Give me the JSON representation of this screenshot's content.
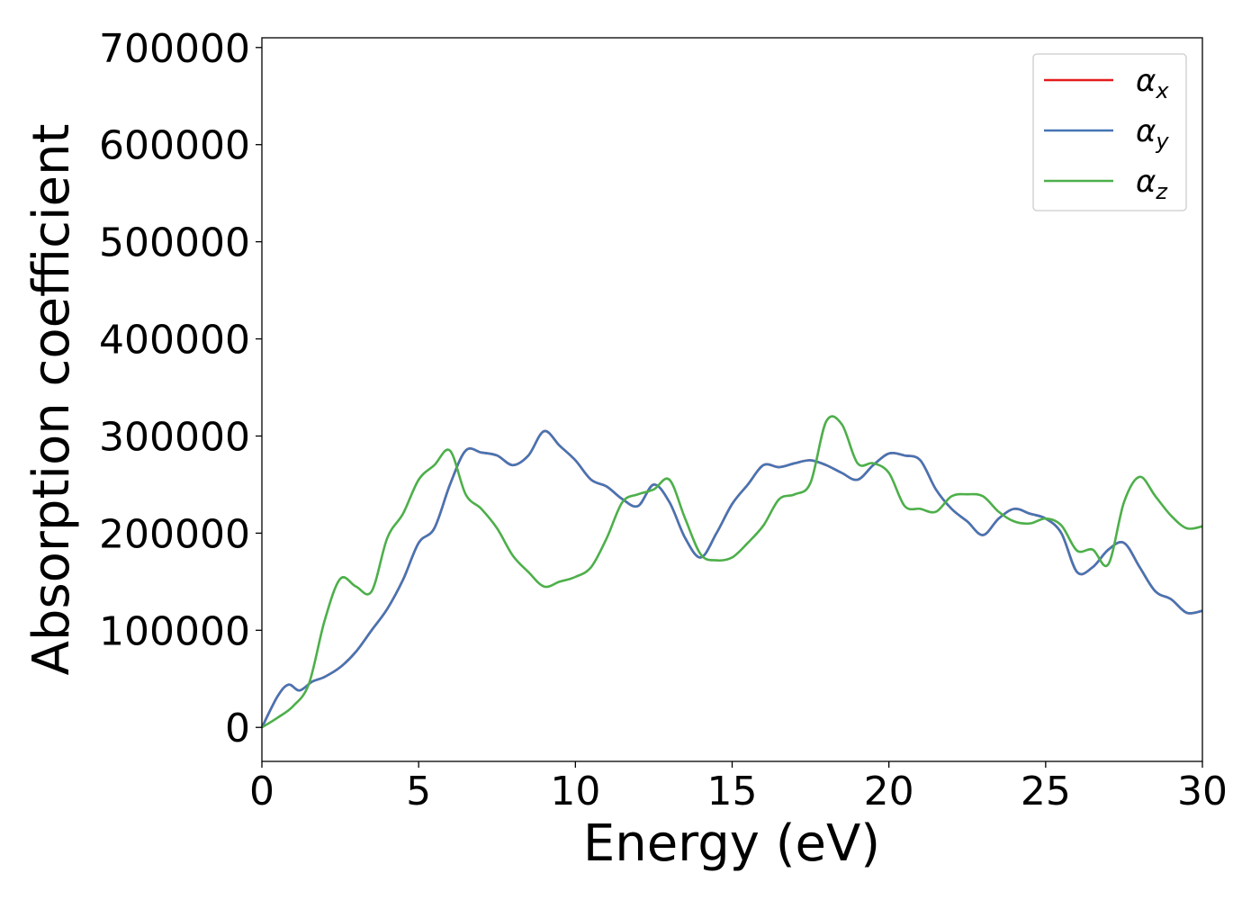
{
  "chart_data": {
    "type": "line",
    "xlabel": "Energy (eV)",
    "ylabel": "Absorption coefficient",
    "xlim": [
      0,
      30
    ],
    "ylim": [
      -35000,
      710000
    ],
    "xticks": [
      0,
      5,
      10,
      15,
      20,
      25,
      30
    ],
    "xtick_labels": [
      "0",
      "5",
      "10",
      "15",
      "20",
      "25",
      "30"
    ],
    "yticks": [
      0,
      100000,
      200000,
      300000,
      400000,
      500000,
      600000,
      700000
    ],
    "ytick_labels": [
      "0",
      "100000",
      "200000",
      "300000",
      "400000",
      "500000",
      "600000",
      "700000"
    ],
    "grid": false,
    "legend_position": "top-right",
    "series": [
      {
        "name": "α_x",
        "label_base": "α",
        "label_sub": "x",
        "color": "#e41a1c",
        "x": [
          0,
          0.5,
          0.85,
          1.2,
          1.6,
          2,
          2.5,
          3,
          3.5,
          4,
          4.5,
          5,
          5.5,
          6,
          6.5,
          7,
          7.5,
          8,
          8.5,
          9,
          9.5,
          10,
          10.5,
          11,
          11.5,
          12,
          12.5,
          13,
          13.5,
          14,
          14.5,
          15,
          15.5,
          16,
          16.5,
          17,
          17.5,
          18,
          18.5,
          19,
          19.5,
          20,
          20.5,
          21,
          21.5,
          22,
          22.5,
          23,
          23.5,
          24,
          24.5,
          25,
          25.5,
          26,
          26.5,
          27,
          27.5,
          28,
          28.5,
          29,
          29.5,
          30
        ],
        "y": [
          0,
          32000,
          44000,
          38000,
          47000,
          52000,
          62000,
          78000,
          100000,
          122000,
          152000,
          190000,
          205000,
          250000,
          285000,
          283000,
          280000,
          270000,
          280000,
          305000,
          290000,
          275000,
          255000,
          248000,
          235000,
          228000,
          250000,
          232000,
          195000,
          175000,
          200000,
          230000,
          250000,
          270000,
          268000,
          272000,
          275000,
          270000,
          262000,
          255000,
          270000,
          282000,
          280000,
          275000,
          245000,
          225000,
          212000,
          198000,
          215000,
          225000,
          220000,
          215000,
          200000,
          160000,
          165000,
          183000,
          190000,
          165000,
          140000,
          132000,
          118000,
          120000
        ]
      },
      {
        "name": "α_y",
        "label_base": "α",
        "label_sub": "y",
        "color": "#4575b4",
        "x": [
          0,
          0.5,
          0.85,
          1.2,
          1.6,
          2,
          2.5,
          3,
          3.5,
          4,
          4.5,
          5,
          5.5,
          6,
          6.5,
          7,
          7.5,
          8,
          8.5,
          9,
          9.5,
          10,
          10.5,
          11,
          11.5,
          12,
          12.5,
          13,
          13.5,
          14,
          14.5,
          15,
          15.5,
          16,
          16.5,
          17,
          17.5,
          18,
          18.5,
          19,
          19.5,
          20,
          20.5,
          21,
          21.5,
          22,
          22.5,
          23,
          23.5,
          24,
          24.5,
          25,
          25.5,
          26,
          26.5,
          27,
          27.5,
          28,
          28.5,
          29,
          29.5,
          30
        ],
        "y": [
          0,
          32000,
          44000,
          38000,
          47000,
          52000,
          62000,
          78000,
          100000,
          122000,
          152000,
          190000,
          205000,
          250000,
          285000,
          283000,
          280000,
          270000,
          280000,
          305000,
          290000,
          275000,
          255000,
          248000,
          235000,
          228000,
          250000,
          232000,
          195000,
          175000,
          200000,
          230000,
          250000,
          270000,
          268000,
          272000,
          275000,
          270000,
          262000,
          255000,
          270000,
          282000,
          280000,
          275000,
          245000,
          225000,
          212000,
          198000,
          215000,
          225000,
          220000,
          215000,
          200000,
          160000,
          165000,
          183000,
          190000,
          165000,
          140000,
          132000,
          118000,
          120000
        ]
      },
      {
        "name": "α_z",
        "label_base": "α",
        "label_sub": "z",
        "color": "#4daf4a",
        "x": [
          0,
          0.5,
          1,
          1.5,
          2,
          2.5,
          3,
          3.5,
          4,
          4.5,
          5,
          5.5,
          6,
          6.5,
          7,
          7.5,
          8,
          8.5,
          9,
          9.5,
          10,
          10.5,
          11,
          11.5,
          12,
          12.5,
          13,
          13.5,
          14,
          14.5,
          15,
          15.5,
          16,
          16.5,
          17,
          17.5,
          18,
          18.5,
          19,
          19.5,
          20,
          20.5,
          21,
          21.5,
          22,
          22.5,
          23,
          23.5,
          24,
          24.5,
          25,
          25.5,
          26,
          26.5,
          27,
          27.5,
          28,
          28.5,
          29,
          29.5,
          30
        ],
        "y": [
          0,
          10000,
          22000,
          45000,
          110000,
          153000,
          145000,
          140000,
          195000,
          220000,
          255000,
          270000,
          285000,
          240000,
          225000,
          205000,
          177000,
          160000,
          145000,
          150000,
          155000,
          165000,
          195000,
          232000,
          240000,
          245000,
          255000,
          215000,
          178000,
          172000,
          175000,
          190000,
          208000,
          235000,
          240000,
          252000,
          315000,
          312000,
          272000,
          272000,
          262000,
          228000,
          225000,
          222000,
          238000,
          240000,
          238000,
          222000,
          212000,
          210000,
          215000,
          208000,
          182000,
          183000,
          168000,
          232000,
          258000,
          238000,
          218000,
          205000,
          207000
        ]
      }
    ]
  }
}
